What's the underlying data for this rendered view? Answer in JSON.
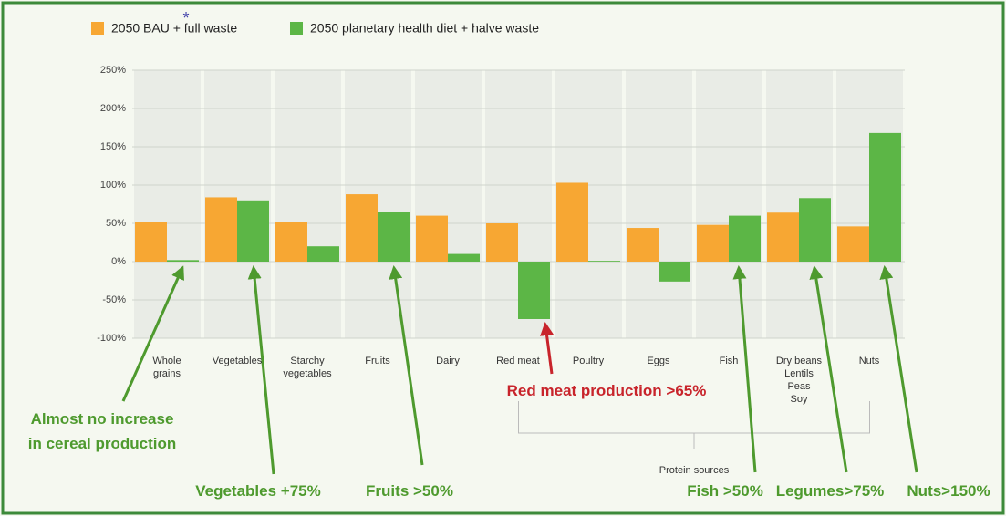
{
  "chart_data": {
    "type": "bar",
    "legend": [
      "2050 BAU + full waste",
      "2050 planetary health diet + halve waste"
    ],
    "legend_mark": "*",
    "categories": [
      "Whole\ngrains",
      "Vegetables",
      "Starchy\nvegetables",
      "Fruits",
      "Dairy",
      "Red meat",
      "Poultry",
      "Eggs",
      "Fish",
      "Dry beans\nLentils\nPeas\nSoy",
      "Nuts"
    ],
    "series": [
      {
        "name": "2050 BAU + full waste",
        "color": "#f7a733",
        "values": [
          52,
          84,
          52,
          88,
          60,
          50,
          103,
          44,
          48,
          64,
          46
        ]
      },
      {
        "name": "2050 planetary health diet + halve waste",
        "color": "#5cb646",
        "values": [
          2,
          80,
          20,
          65,
          10,
          -75,
          1,
          -26,
          60,
          83,
          168
        ]
      }
    ],
    "ylim": [
      -100,
      250
    ],
    "yticks": [
      {
        "value": -100,
        "label": "-100%"
      },
      {
        "value": -50,
        "label": "-50%"
      },
      {
        "value": 0,
        "label": "0%"
      },
      {
        "value": 50,
        "label": "50%"
      },
      {
        "value": 100,
        "label": "100%"
      },
      {
        "value": 150,
        "label": "150%"
      },
      {
        "value": 200,
        "label": "200%"
      },
      {
        "value": 250,
        "label": "250%"
      }
    ],
    "grid": true,
    "group_label": "Protein sources",
    "annotations": [
      {
        "text": "Almost no increase\nin cereal production",
        "color": "#4e9a2e"
      },
      {
        "text": "Vegetables +75%",
        "color": "#4e9a2e"
      },
      {
        "text": "Fruits >50%",
        "color": "#4e9a2e"
      },
      {
        "text": "Red meat production >65%",
        "color": "#c8242b"
      },
      {
        "text": "Fish >50%",
        "color": "#4e9a2e"
      },
      {
        "text": "Legumes>75%",
        "color": "#4e9a2e"
      },
      {
        "text": "Nuts>150%",
        "color": "#4e9a2e"
      }
    ]
  }
}
